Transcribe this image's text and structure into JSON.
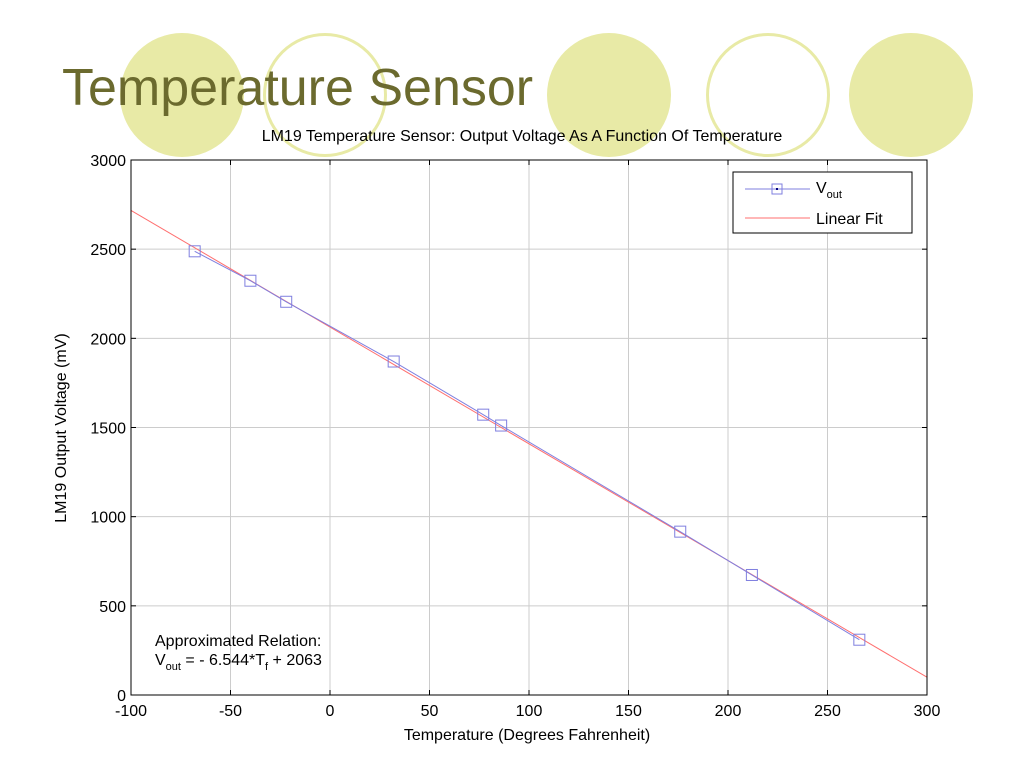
{
  "slide": {
    "title": "Temperature Sensor",
    "accent_color": "#e8eaa6",
    "title_color": "#6b6a2e"
  },
  "chart_data": {
    "type": "scatter",
    "title": "LM19 Temperature Sensor: Output Voltage As A Function Of Temperature",
    "xlabel": "Temperature (Degrees Fahrenheit)",
    "ylabel": "LM19 Output Voltage (mV)",
    "xlim": [
      -100,
      300
    ],
    "ylim": [
      0,
      3000
    ],
    "xticks": [
      "-100",
      "-50",
      "0",
      "50",
      "100",
      "150",
      "200",
      "250",
      "300"
    ],
    "yticks": [
      "0",
      "500",
      "1000",
      "1500",
      "2000",
      "2500",
      "3000"
    ],
    "grid": true,
    "legend_position": "top-right",
    "series": [
      {
        "name": "Vout",
        "legend_main": "V",
        "legend_sub": "out",
        "marker": "square",
        "color": "#7f7fdf",
        "x": [
          -68,
          -40,
          -22,
          32,
          77,
          86,
          176,
          212,
          266
        ],
        "y": [
          2488,
          2323,
          2205,
          1870,
          1572,
          1511,
          916,
          673,
          310
        ]
      },
      {
        "name": "Linear Fit",
        "line": "solid",
        "color": "#ff6f6f",
        "slope": -6.544,
        "intercept": 2063
      }
    ],
    "annotation": {
      "line1": "Approximated Relation:",
      "v_main": "V",
      "v_sub": "out",
      "middle": " = - 6.544*T",
      "t_sub": "f",
      "end": " + 2063"
    }
  }
}
